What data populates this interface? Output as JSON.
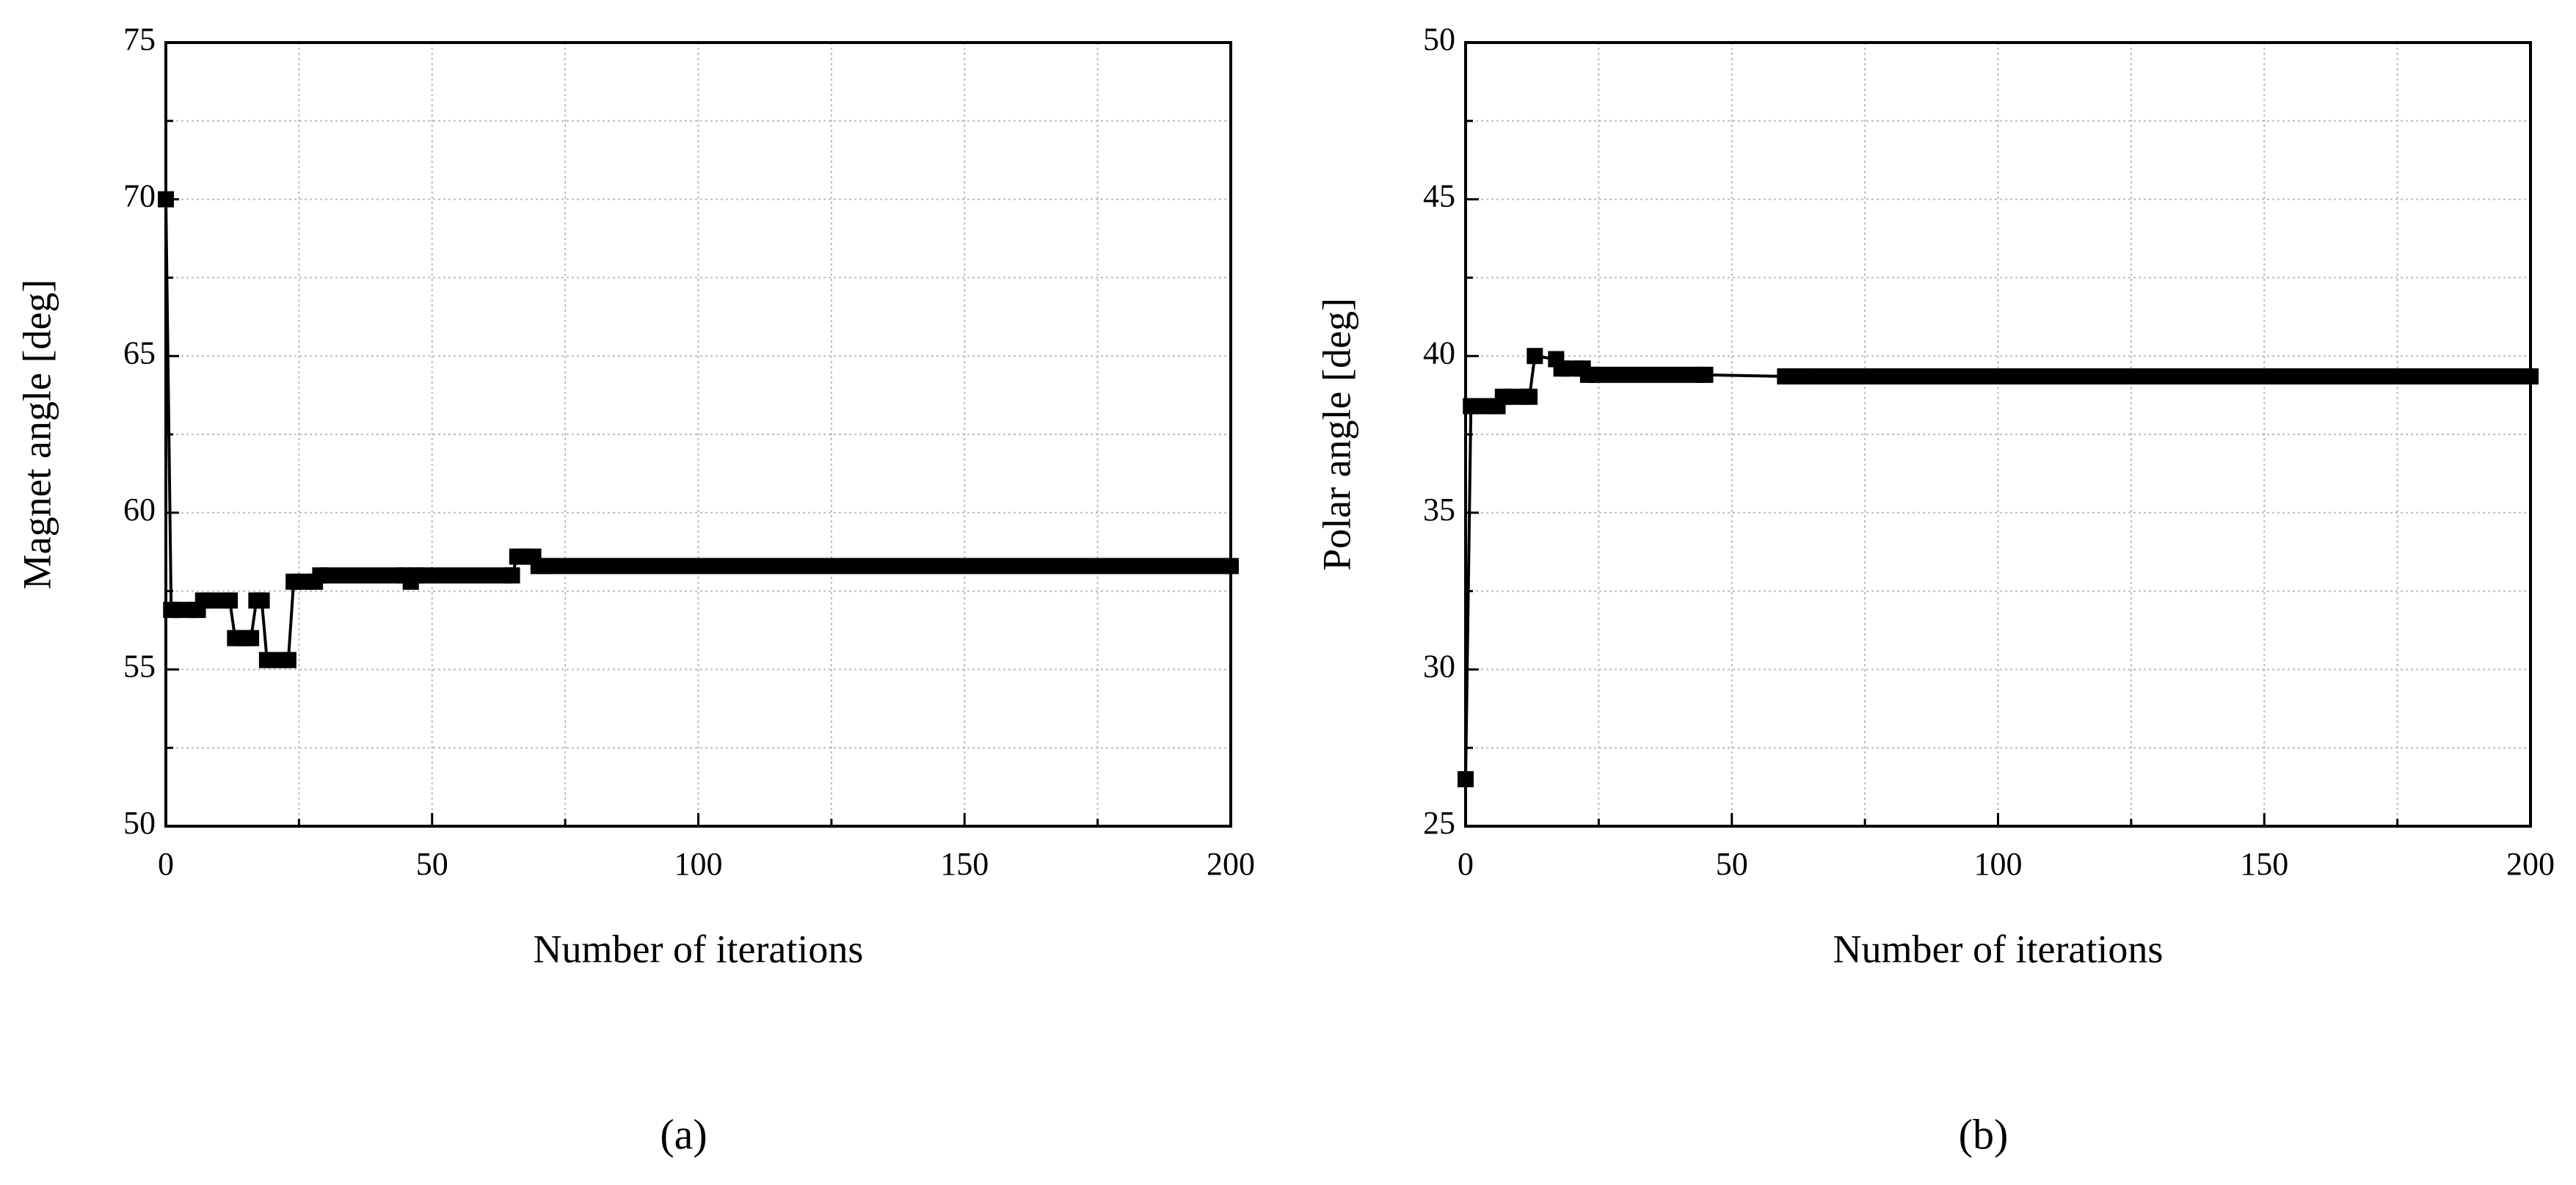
{
  "chart_data": [
    {
      "type": "line",
      "panel_label": "(a)",
      "xlabel": "Number of iterations",
      "ylabel": "Magnet angle [deg]",
      "xlim": [
        0,
        200
      ],
      "xticks": [
        0,
        50,
        100,
        150,
        200
      ],
      "minor_xticks": [
        25,
        75,
        125,
        175
      ],
      "ylim": [
        50,
        75
      ],
      "yticks": [
        50,
        55,
        60,
        65,
        70,
        75
      ],
      "minor_yticks": [
        52.5,
        57.5,
        62.5,
        67.5,
        72.5
      ],
      "grid": true,
      "series": [
        {
          "color": "#000000",
          "x": [
            0,
            1,
            6,
            7,
            12,
            13,
            16,
            17,
            18,
            19,
            23,
            24,
            28,
            29,
            45,
            46,
            47,
            65,
            66,
            69,
            70,
            200
          ],
          "values": [
            70,
            56.9,
            56.9,
            57.2,
            57.2,
            56,
            56,
            57.2,
            57.2,
            55.3,
            55.3,
            57.8,
            57.8,
            58,
            58,
            57.8,
            58,
            58,
            58.6,
            58.6,
            58.3,
            58.3
          ]
        }
      ]
    },
    {
      "type": "line",
      "panel_label": "(b)",
      "xlabel": "Number of iterations",
      "ylabel": "Polar angle [deg]",
      "xlim": [
        0,
        200
      ],
      "xticks": [
        0,
        50,
        100,
        150,
        200
      ],
      "minor_xticks": [
        25,
        75,
        125,
        175
      ],
      "ylim": [
        25,
        50
      ],
      "yticks": [
        25,
        30,
        35,
        40,
        45,
        50
      ],
      "minor_yticks": [
        27.5,
        32.5,
        37.5,
        42.5,
        47.5
      ],
      "grid": true,
      "series": [
        {
          "color": "#000000",
          "x": [
            0,
            1,
            6,
            7,
            12,
            13,
            17,
            18,
            22,
            23,
            45,
            60,
            65,
            200
          ],
          "values": [
            26.5,
            38.4,
            38.4,
            38.7,
            38.7,
            40,
            39.9,
            39.6,
            39.6,
            39.4,
            39.4,
            39.35,
            39.35,
            39.35
          ]
        }
      ]
    }
  ]
}
